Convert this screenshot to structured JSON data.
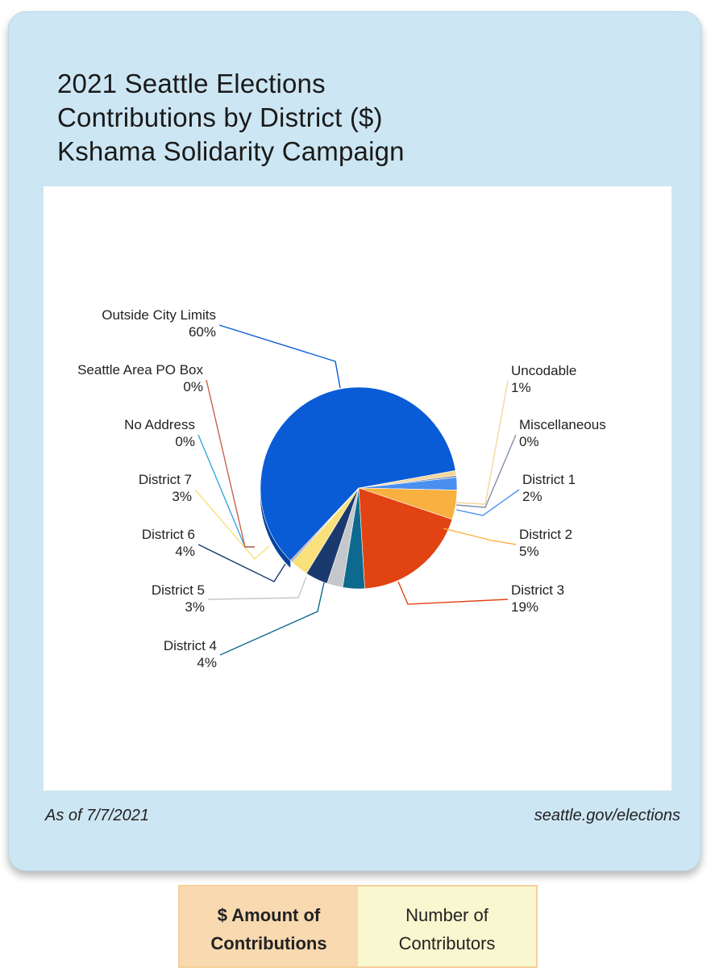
{
  "title_lines": [
    "2021 Seattle Elections",
    "Contributions by District ($)",
    "Kshama Solidarity Campaign"
  ],
  "footer": {
    "as_of": "As of 7/7/2021",
    "source": "seattle.gov/elections"
  },
  "tabs": [
    {
      "line1": "$ Amount of",
      "line2": "Contributions",
      "active": true
    },
    {
      "line1": "Number of",
      "line2": "Contributors",
      "active": false
    }
  ],
  "chart_data": {
    "type": "pie",
    "slices": [
      {
        "label": "Outside City Limits",
        "pct_label": "60%",
        "value": 60.0,
        "color": "#0a5bd6"
      },
      {
        "label": "Uncodable",
        "pct_label": "1%",
        "value": 0.8,
        "color": "#f4d79a"
      },
      {
        "label": "Miscellaneous",
        "pct_label": "0%",
        "value": 0.3,
        "color": "#8090a8"
      },
      {
        "label": "District 1",
        "pct_label": "2%",
        "value": 2.0,
        "color": "#4a8ff0"
      },
      {
        "label": "District 2",
        "pct_label": "5%",
        "value": 4.7,
        "color": "#f8b040"
      },
      {
        "label": "District 3",
        "pct_label": "19%",
        "value": 19.0,
        "color": "#e14312"
      },
      {
        "label": "District 4",
        "pct_label": "4%",
        "value": 3.6,
        "color": "#0d6a8e"
      },
      {
        "label": "District 5",
        "pct_label": "3%",
        "value": 2.6,
        "color": "#c4c8cc"
      },
      {
        "label": "District 6",
        "pct_label": "4%",
        "value": 3.7,
        "color": "#1a3a6e"
      },
      {
        "label": "District 7",
        "pct_label": "3%",
        "value": 2.9,
        "color": "#f9e07a"
      },
      {
        "label": "No Address",
        "pct_label": "0%",
        "value": 0.2,
        "color": "#3aa6dc"
      },
      {
        "label": "Seattle Area PO Box",
        "pct_label": "0%",
        "value": 0.2,
        "color": "#c8644a"
      }
    ]
  }
}
